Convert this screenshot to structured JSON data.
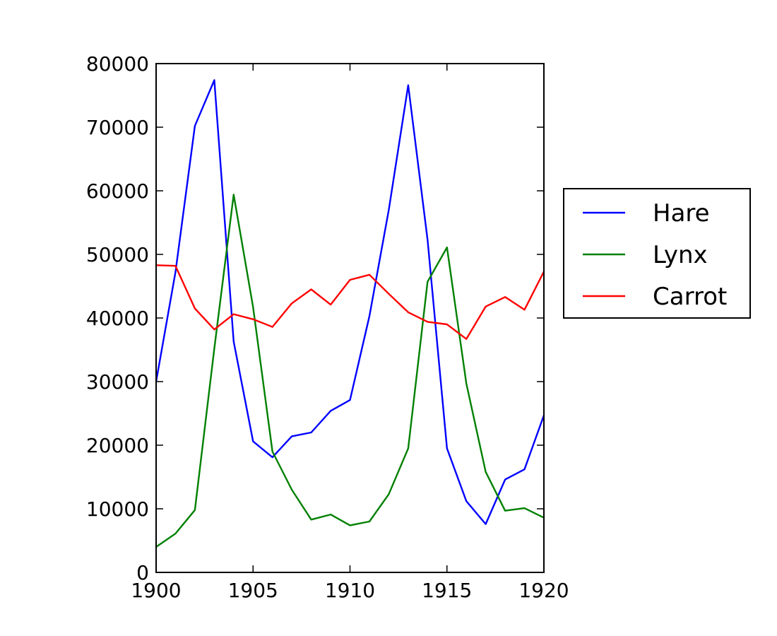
{
  "chart_data": {
    "type": "line",
    "title": "",
    "xlabel": "",
    "ylabel": "",
    "xlim": [
      1900,
      1920
    ],
    "ylim": [
      0,
      80000
    ],
    "x_ticks": [
      1900,
      1905,
      1910,
      1915,
      1920
    ],
    "y_ticks": [
      0,
      10000,
      20000,
      30000,
      40000,
      50000,
      60000,
      70000,
      80000
    ],
    "grid": false,
    "legend_position": "outside-right",
    "x": [
      1900,
      1901,
      1902,
      1903,
      1904,
      1905,
      1906,
      1907,
      1908,
      1909,
      1910,
      1911,
      1912,
      1913,
      1914,
      1915,
      1916,
      1917,
      1918,
      1919,
      1920
    ],
    "series": [
      {
        "name": "Hare",
        "color": "#0000ff",
        "values": [
          30000,
          47200,
          70200,
          77400,
          36300,
          20600,
          18100,
          21400,
          22000,
          25400,
          27100,
          40300,
          57000,
          76600,
          52300,
          19500,
          11200,
          7600,
          14600,
          16200,
          24700
        ]
      },
      {
        "name": "Lynx",
        "color": "#008000",
        "values": [
          4000,
          6100,
          9800,
          35200,
          59400,
          41700,
          19000,
          13000,
          8300,
          9100,
          7400,
          8000,
          12300,
          19500,
          45700,
          51100,
          29700,
          15800,
          9700,
          10100,
          8600
        ]
      },
      {
        "name": "Carrot",
        "color": "#ff0000",
        "values": [
          48300,
          48200,
          41500,
          38200,
          40600,
          39800,
          38600,
          42300,
          44500,
          42100,
          46000,
          46800,
          43800,
          40900,
          39400,
          39000,
          36700,
          41800,
          43300,
          41300,
          47300
        ]
      }
    ]
  }
}
